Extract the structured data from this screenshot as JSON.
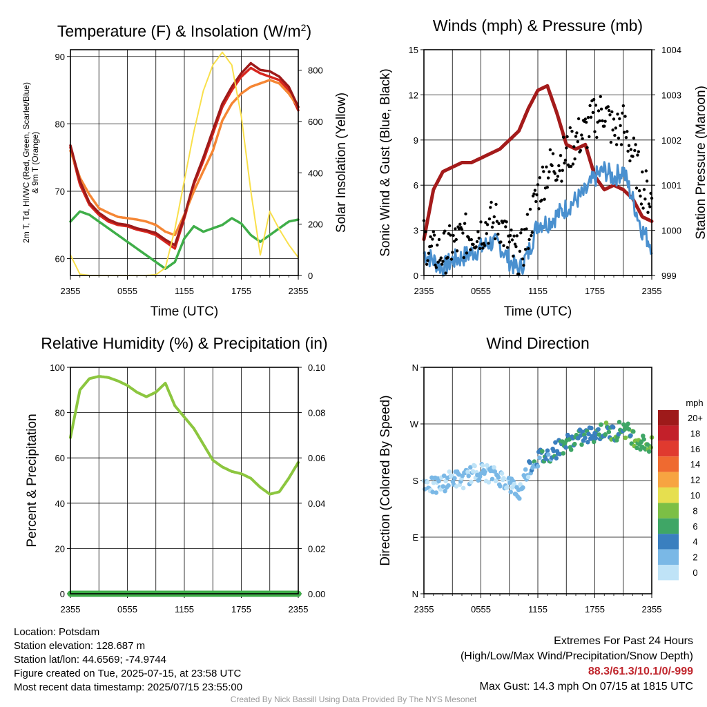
{
  "chart_data": [
    {
      "type": "line",
      "title": "Temperature (F) & Insolation (W/m2)",
      "xlabel": "Time (UTC)",
      "ylabel": "2m T, Td, HI/WC (Red, Green, Scarlet/Blue) & 9m T (Orange)",
      "ylabel_right": "Solar Insolation (Yellow)",
      "x_ticks": [
        "2355",
        "0555",
        "1155",
        "1755",
        "2355"
      ],
      "ylim": [
        57.5,
        91
      ],
      "y_ticks": [
        60,
        70,
        80,
        90
      ],
      "ylim_right": [
        0,
        880
      ],
      "y_ticks_right": [
        0,
        200,
        400,
        600,
        800
      ],
      "x_hours": [
        0,
        1,
        2,
        3,
        4,
        5,
        6,
        7,
        8,
        9,
        10,
        11,
        12,
        13,
        14,
        15,
        16,
        17,
        18,
        19,
        20,
        21,
        22,
        23,
        24
      ],
      "series": [
        {
          "color": "#d7261e",
          "axis": "left",
          "values": [
            76.5,
            71,
            68,
            66.5,
            65.5,
            65,
            64.8,
            64.3,
            64,
            63.5,
            62.5,
            61.5,
            66,
            71,
            74.5,
            78.5,
            82.5,
            85,
            87,
            88.3,
            87.5,
            87,
            86.5,
            85,
            82
          ]
        },
        {
          "color": "#f58634",
          "axis": "left",
          "values": [
            76,
            72,
            69.5,
            67.5,
            66.8,
            66.2,
            66,
            65.8,
            65.5,
            65,
            64,
            63.5,
            66.5,
            70,
            73,
            76,
            80.5,
            83,
            84.5,
            85.5,
            86,
            86.5,
            86,
            84.5,
            82.5
          ]
        },
        {
          "color": "#9e1a1a",
          "axis": "left",
          "values": [
            76.8,
            71.5,
            68.3,
            66.8,
            65.8,
            65.2,
            65,
            64.5,
            64.2,
            63.8,
            62.8,
            62,
            66.3,
            71.3,
            75,
            79,
            83,
            85.5,
            87.5,
            89,
            88,
            87.8,
            87,
            85.5,
            82.5
          ]
        },
        {
          "color": "#3fae49",
          "axis": "left",
          "values": [
            65.5,
            67,
            66.5,
            65.5,
            64.5,
            63.5,
            62.5,
            61.5,
            60.5,
            59.5,
            58.5,
            59.5,
            63,
            64.8,
            64,
            64.5,
            65,
            66,
            65.2,
            63.5,
            62.5,
            63.5,
            64.5,
            65.5,
            65.8
          ]
        },
        {
          "color": "#f9e04b",
          "axis": "right",
          "values": [
            80,
            5,
            0,
            0,
            0,
            0,
            0,
            0,
            0,
            3,
            30,
            180,
            370,
            560,
            720,
            820,
            870,
            820,
            620,
            330,
            80,
            250,
            180,
            120,
            70
          ]
        }
      ]
    },
    {
      "type": "line",
      "title": "Winds (mph) & Pressure (mb)",
      "xlabel": "Time (UTC)",
      "ylabel": "Sonic Wind & Gust (Blue, Black)",
      "ylabel_right": "Station Pressure (Maroon)",
      "x_ticks": [
        "2355",
        "0555",
        "1155",
        "1755",
        "2355"
      ],
      "ylim": [
        0,
        15
      ],
      "y_ticks": [
        0,
        3,
        6,
        9,
        12,
        15
      ],
      "ylim_right": [
        999,
        1004
      ],
      "y_ticks_right": [
        999,
        1000,
        1001,
        1002,
        1003,
        1004
      ],
      "x_hours": [
        0,
        1,
        2,
        3,
        4,
        5,
        6,
        7,
        8,
        9,
        10,
        11,
        12,
        13,
        14,
        15,
        16,
        17,
        18,
        19,
        20,
        21,
        22,
        23,
        24
      ],
      "series": [
        {
          "color": "#a41b1b",
          "axis": "right",
          "values": [
            999.8,
            1000.9,
            1001.3,
            1001.4,
            1001.5,
            1001.5,
            1001.6,
            1001.7,
            1001.8,
            1002,
            1002.2,
            1002.7,
            1003.1,
            1003.2,
            1002.6,
            1001.9,
            1001.8,
            1001.9,
            1001.2,
            1000.9,
            1001,
            1000.9,
            1000.7,
            1000.3,
            1000.2
          ]
        },
        {
          "color": "#4a90cf",
          "axis": "left",
          "values": [
            1.5,
            1,
            0.5,
            1,
            1.2,
            1.5,
            1.8,
            2.2,
            2,
            1,
            0.3,
            1.5,
            3.5,
            3.5,
            4,
            4.5,
            5,
            5.5,
            6.5,
            7,
            6.5,
            7,
            5,
            3,
            2
          ]
        },
        {
          "color": "#000000",
          "axis": "left",
          "values": [
            2.5,
            1.5,
            1.5,
            2,
            2.5,
            2.8,
            3,
            3.5,
            3.5,
            2,
            1,
            3,
            5.5,
            7,
            7.5,
            8,
            9,
            9.5,
            10.5,
            11,
            9.5,
            10,
            8,
            6,
            5
          ]
        }
      ]
    },
    {
      "type": "line",
      "title": "Relative Humidity (%) & Precipitation (in)",
      "xlabel": "",
      "ylabel": "Percent & Precipitation",
      "x_ticks": [
        "2355",
        "0555",
        "1155",
        "1755",
        "2355"
      ],
      "ylim": [
        0,
        100
      ],
      "y_ticks": [
        0,
        20,
        40,
        60,
        80,
        100
      ],
      "ylim_right": [
        0,
        0.1
      ],
      "y_ticks_right": [
        "0.00",
        "0.02",
        "0.04",
        "0.06",
        "0.08",
        "0.10"
      ],
      "x_hours": [
        0,
        1,
        2,
        3,
        4,
        5,
        6,
        7,
        8,
        9,
        10,
        11,
        12,
        13,
        14,
        15,
        16,
        17,
        18,
        19,
        20,
        21,
        22,
        23,
        24
      ],
      "series": [
        {
          "color": "#8cc63f",
          "axis": "left",
          "values": [
            69,
            90,
            95,
            96,
            95.5,
            94,
            92,
            89,
            87,
            89,
            93,
            83,
            78,
            73,
            66,
            59,
            56,
            54,
            53,
            51,
            47,
            44,
            45,
            51,
            58
          ]
        },
        {
          "color": "#3fae49",
          "axis": "right",
          "values": [
            0,
            0,
            0,
            0,
            0,
            0,
            0,
            0,
            0,
            0,
            0,
            0,
            0,
            0,
            0,
            0,
            0,
            0,
            0,
            0,
            0,
            0,
            0,
            0,
            0
          ]
        }
      ]
    },
    {
      "type": "scatter",
      "title": "Wind Direction",
      "xlabel": "",
      "ylabel": "Direction (Colored By Speed)",
      "x_ticks": [
        "2355",
        "0555",
        "1155",
        "1755",
        "2355"
      ],
      "y_ticks": [
        "N",
        "E",
        "S",
        "W",
        "N"
      ],
      "legend": {
        "title": "mph",
        "labels": [
          "20+",
          "18",
          "16",
          "14",
          "12",
          "10",
          "8",
          "6",
          "4",
          "2",
          "0"
        ],
        "colors": [
          "#9e1a1a",
          "#c3202a",
          "#e03a2f",
          "#ef6a30",
          "#f7a441",
          "#e6df4f",
          "#7cbf45",
          "#3fa666",
          "#3a7fbf",
          "#7ab8e6",
          "#bfe3f7"
        ]
      },
      "x_hours": [
        0,
        1,
        2,
        3,
        4,
        5,
        6,
        7,
        8,
        9,
        10,
        11,
        12,
        13,
        14,
        15,
        16,
        17,
        18,
        19,
        20,
        21,
        22,
        23,
        24
      ],
      "direction_deg": [
        180,
        170,
        175,
        185,
        180,
        190,
        195,
        190,
        185,
        175,
        160,
        200,
        215,
        220,
        230,
        240,
        245,
        250,
        255,
        260,
        255,
        265,
        250,
        240,
        235
      ]
    }
  ],
  "info_left": [
    "Location: Potsdam",
    "Station elevation: 128.687 m",
    "Station lat/lon: 44.6569; -74.9744",
    "Figure created on Tue, 2025-07-15, at 23:58 UTC",
    "Most recent data timestamp: 2025/07/15 23:55:00"
  ],
  "extremes": {
    "title": "Extremes For Past 24 Hours",
    "subtitle": "(High/Low/Max Wind/Precipitation/Snow Depth)",
    "values": "88.3/61.3/10.1/0/-999",
    "max_gust": "Max Gust: 14.3 mph On 07/15 at 1815 UTC"
  },
  "credit": "Created By Nick Bassill Using Data Provided By The NYS Mesonet"
}
